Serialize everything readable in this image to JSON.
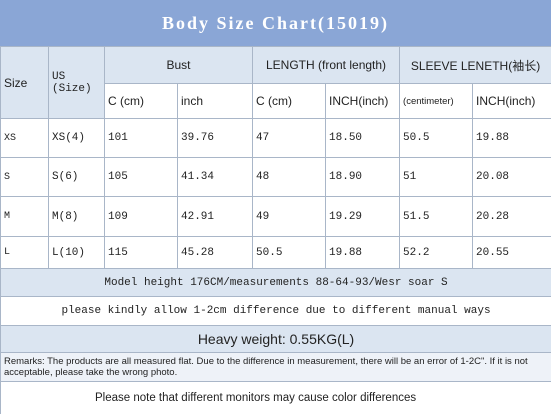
{
  "header": {
    "title": "Body Size Chart(15019)"
  },
  "table": {
    "size_label": "Size",
    "us_size_label": "US (Size)",
    "groups": [
      "Bust",
      "LENGTH (front length)",
      "SLEEVE LENETH(袖长)"
    ],
    "units": [
      "C (cm)",
      "inch",
      "C (cm)",
      "INCH(inch)",
      "(centimeter)",
      "INCH(inch)"
    ],
    "rows": [
      [
        "XS",
        "XS(4)",
        "101",
        "39.76",
        "47",
        "18.50",
        "50.5",
        "19.88"
      ],
      [
        "S",
        "S(6)",
        "105",
        "41.34",
        "48",
        "18.90",
        "51",
        "20.08"
      ],
      [
        "M",
        "M(8)",
        "109",
        "42.91",
        "49",
        "19.29",
        "51.5",
        "20.28"
      ],
      [
        "L",
        "L(10)",
        "115",
        "45.28",
        "50.5",
        "19.88",
        "52.2",
        "20.55"
      ]
    ]
  },
  "notes": {
    "model": "Model height 176CM/measurements 88-64-93/Wesr soar S",
    "allow": "please kindly allow 1-2cm difference due to different manual ways",
    "weight": "Heavy weight: 0.55KG(L)",
    "remarks": "Remarks: The products are all measured flat. Due to the difference in measurement, there will be an error of 1-2C\". If it is not acceptable, please take the wrong photo.",
    "monitor": "Please note that different monitors may cause color differences"
  }
}
